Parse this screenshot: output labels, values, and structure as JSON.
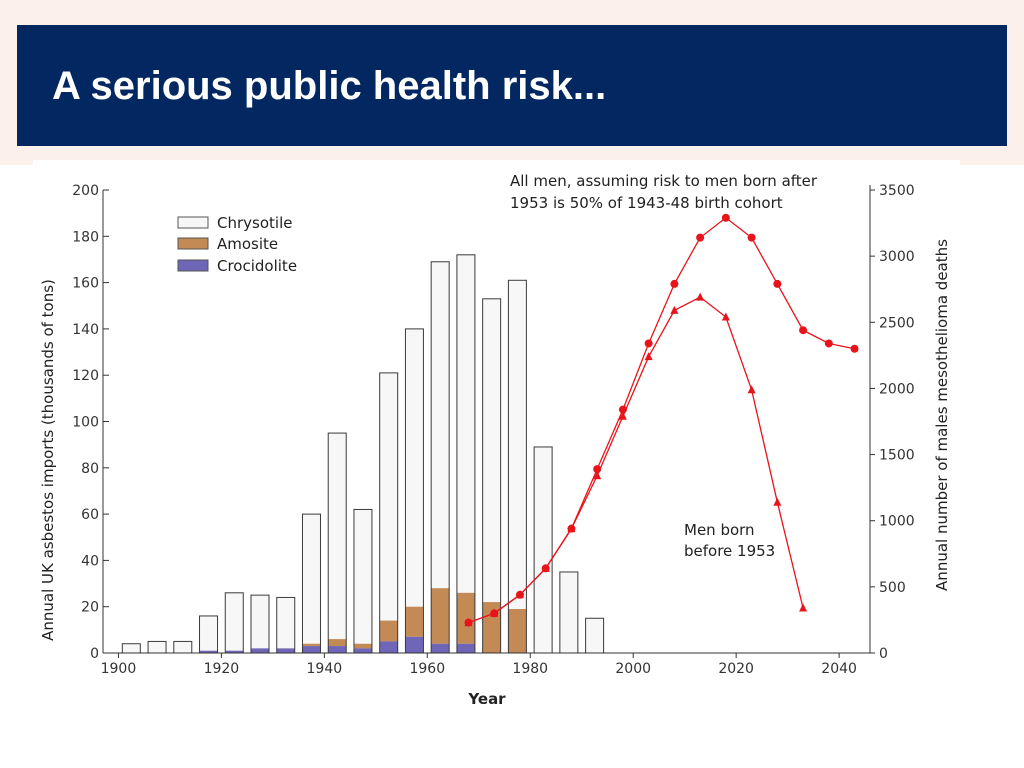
{
  "slide": {
    "title": "A serious public health risk..."
  },
  "colors": {
    "title_bar": "#022761",
    "background_band": "#fbf1ea",
    "chrysotile": "#f7f7f7",
    "amosite": "#c48a56",
    "crocidolite": "#6f66b8",
    "projection_line": "#e8141b"
  },
  "chart_data": {
    "type": "bar",
    "xlabel": "Year",
    "ylabel": "Annual UK asbestos imports (thousands of tons)",
    "y2label": "Annual number of males mesothelioma deaths",
    "xlim": [
      1897,
      2046
    ],
    "ylim": [
      0,
      200
    ],
    "y2lim": [
      0,
      3500
    ],
    "x_ticks": [
      1900,
      1920,
      1940,
      1960,
      1980,
      2000,
      2020,
      2040
    ],
    "y_ticks": [
      0,
      20,
      40,
      60,
      80,
      100,
      120,
      140,
      160,
      180,
      200
    ],
    "y2_ticks": [
      0,
      500,
      1000,
      1500,
      2000,
      2500,
      3000,
      3500
    ],
    "grid": false,
    "legend_position": "top-left",
    "bar_series": [
      {
        "name": "Chrysotile",
        "color": "#f7f7f7"
      },
      {
        "name": "Amosite",
        "color": "#c48a56"
      },
      {
        "name": "Crocidolite",
        "color": "#6f66b8"
      }
    ],
    "bars": [
      {
        "year": 1900,
        "total": 4,
        "amosite": 0,
        "crocidolite": 0
      },
      {
        "year": 1905,
        "total": 5,
        "amosite": 0,
        "crocidolite": 0
      },
      {
        "year": 1910,
        "total": 5,
        "amosite": 0,
        "crocidolite": 0
      },
      {
        "year": 1915,
        "total": 16,
        "amosite": 0,
        "crocidolite": 1
      },
      {
        "year": 1920,
        "total": 26,
        "amosite": 0,
        "crocidolite": 1
      },
      {
        "year": 1925,
        "total": 25,
        "amosite": 0,
        "crocidolite": 2
      },
      {
        "year": 1930,
        "total": 24,
        "amosite": 0,
        "crocidolite": 2
      },
      {
        "year": 1935,
        "total": 60,
        "amosite": 1,
        "crocidolite": 3
      },
      {
        "year": 1940,
        "total": 95,
        "amosite": 3,
        "crocidolite": 3
      },
      {
        "year": 1945,
        "total": 62,
        "amosite": 2,
        "crocidolite": 2
      },
      {
        "year": 1950,
        "total": 121,
        "amosite": 9,
        "crocidolite": 5
      },
      {
        "year": 1955,
        "total": 140,
        "amosite": 13,
        "crocidolite": 7
      },
      {
        "year": 1960,
        "total": 169,
        "amosite": 24,
        "crocidolite": 4
      },
      {
        "year": 1965,
        "total": 172,
        "amosite": 22,
        "crocidolite": 4
      },
      {
        "year": 1970,
        "total": 153,
        "amosite": 22,
        "crocidolite": 0
      },
      {
        "year": 1975,
        "total": 161,
        "amosite": 19,
        "crocidolite": 0
      },
      {
        "year": 1980,
        "total": 89,
        "amosite": 0,
        "crocidolite": 0
      },
      {
        "year": 1985,
        "total": 35,
        "amosite": 0,
        "crocidolite": 0
      },
      {
        "year": 1990,
        "total": 15,
        "amosite": 0,
        "crocidolite": 0
      }
    ],
    "line_series": [
      {
        "name": "All men, assuming risk to men born after 1953 is 50% of 1943-48 birth cohort",
        "marker": "circle",
        "points": [
          {
            "x": 1968,
            "y": 230
          },
          {
            "x": 1973,
            "y": 300
          },
          {
            "x": 1978,
            "y": 440
          },
          {
            "x": 1983,
            "y": 640
          },
          {
            "x": 1988,
            "y": 940
          },
          {
            "x": 1993,
            "y": 1390
          },
          {
            "x": 1998,
            "y": 1840
          },
          {
            "x": 2003,
            "y": 2340
          },
          {
            "x": 2008,
            "y": 2790
          },
          {
            "x": 2013,
            "y": 3140
          },
          {
            "x": 2018,
            "y": 3290
          },
          {
            "x": 2023,
            "y": 3140
          },
          {
            "x": 2028,
            "y": 2790
          },
          {
            "x": 2033,
            "y": 2440
          },
          {
            "x": 2038,
            "y": 2340
          },
          {
            "x": 2043,
            "y": 2300
          }
        ]
      },
      {
        "name": "Men born before 1953",
        "marker": "triangle",
        "points": [
          {
            "x": 1968,
            "y": 230
          },
          {
            "x": 1973,
            "y": 300
          },
          {
            "x": 1978,
            "y": 440
          },
          {
            "x": 1983,
            "y": 640
          },
          {
            "x": 1988,
            "y": 940
          },
          {
            "x": 1993,
            "y": 1340
          },
          {
            "x": 1998,
            "y": 1790
          },
          {
            "x": 2003,
            "y": 2240
          },
          {
            "x": 2008,
            "y": 2590
          },
          {
            "x": 2013,
            "y": 2690
          },
          {
            "x": 2018,
            "y": 2540
          },
          {
            "x": 2023,
            "y": 1990
          },
          {
            "x": 2028,
            "y": 1140
          },
          {
            "x": 2033,
            "y": 340
          }
        ]
      }
    ],
    "annotations": {
      "all_men_line1": "All men, assuming risk to men born after",
      "all_men_line2": "1953 is 50% of 1943-48 birth cohort",
      "before_1953_line1": "Men born",
      "before_1953_line2": "before 1953"
    }
  }
}
